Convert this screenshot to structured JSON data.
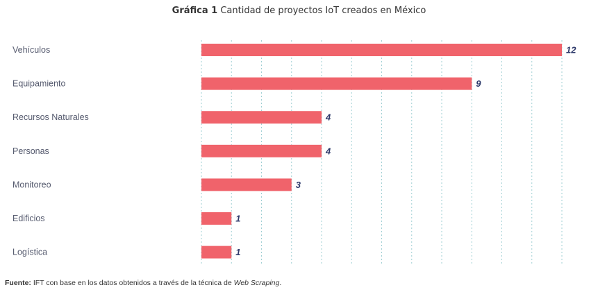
{
  "title": {
    "prefix": "Gráfica 1",
    "text": "Cantidad de proyectos IoT creados en México"
  },
  "source": {
    "label": "Fuente:",
    "text": "IFT con base en los datos obtenidos a través de la técnica de",
    "italic": "Web Scraping",
    "end": "."
  },
  "colors": {
    "bar": "#f0636b",
    "value_label": "#2e3a6b",
    "category_label": "#555a6e",
    "grid": "#9fcfd3"
  },
  "chart_data": {
    "type": "bar",
    "orientation": "horizontal",
    "categories": [
      "Vehículos",
      "Equipamiento",
      "Recursos Naturales",
      "Personas",
      "Monitoreo",
      "Edificios",
      "Logística"
    ],
    "values": [
      12,
      9,
      4,
      4,
      3,
      1,
      1
    ],
    "value_labels": [
      "12",
      "9",
      "4",
      "4",
      "3",
      "1",
      "1"
    ],
    "xlim": [
      0,
      12
    ],
    "grid": true
  }
}
